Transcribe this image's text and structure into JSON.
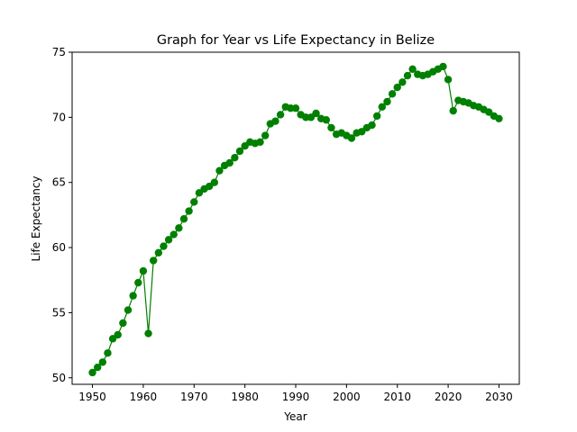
{
  "chart_data": {
    "type": "line",
    "title": "Graph for Year vs Life Expectancy in Belize",
    "xlabel": "Year",
    "ylabel": "Life Expectancy",
    "xlim": [
      1946,
      2034
    ],
    "ylim": [
      49.5,
      75.0
    ],
    "xticks": [
      1950,
      1960,
      1970,
      1980,
      1990,
      2000,
      2010,
      2020,
      2030
    ],
    "yticks": [
      50,
      55,
      60,
      65,
      70,
      75
    ],
    "grid": false,
    "color": "#008000",
    "marker": "circle",
    "x": [
      1950,
      1951,
      1952,
      1953,
      1954,
      1955,
      1956,
      1957,
      1958,
      1959,
      1960,
      1961,
      1962,
      1963,
      1964,
      1965,
      1966,
      1967,
      1968,
      1969,
      1970,
      1971,
      1972,
      1973,
      1974,
      1975,
      1976,
      1977,
      1978,
      1979,
      1980,
      1981,
      1982,
      1983,
      1984,
      1985,
      1986,
      1987,
      1988,
      1989,
      1990,
      1991,
      1992,
      1993,
      1994,
      1995,
      1996,
      1997,
      1998,
      1999,
      2000,
      2001,
      2002,
      2003,
      2004,
      2005,
      2006,
      2007,
      2008,
      2009,
      2010,
      2011,
      2012,
      2013,
      2014,
      2015,
      2016,
      2017,
      2018,
      2019,
      2020,
      2021,
      2022,
      2023,
      2024,
      2025,
      2026,
      2027,
      2028,
      2029,
      2030
    ],
    "y": [
      50.4,
      50.8,
      51.2,
      51.9,
      53.0,
      53.3,
      54.2,
      55.2,
      56.3,
      57.3,
      58.2,
      53.4,
      59.0,
      59.6,
      60.1,
      60.6,
      61.0,
      61.5,
      62.2,
      62.8,
      63.5,
      64.2,
      64.5,
      64.7,
      65.0,
      65.9,
      66.3,
      66.5,
      66.9,
      67.4,
      67.8,
      68.1,
      68.0,
      68.1,
      68.6,
      69.5,
      69.7,
      70.2,
      70.8,
      70.7,
      70.7,
      70.2,
      70.0,
      70.0,
      70.3,
      69.9,
      69.8,
      69.2,
      68.7,
      68.8,
      68.6,
      68.4,
      68.8,
      68.9,
      69.2,
      69.4,
      70.1,
      70.8,
      71.2,
      71.8,
      72.3,
      72.7,
      73.2,
      73.7,
      73.3,
      73.2,
      73.3,
      73.5,
      73.7,
      73.9,
      72.9,
      70.5,
      71.3,
      71.2,
      71.1,
      70.9,
      70.8,
      70.6,
      70.4,
      70.1,
      69.9
    ]
  }
}
